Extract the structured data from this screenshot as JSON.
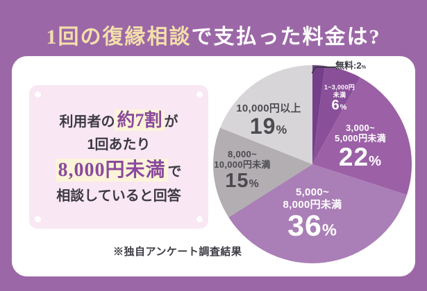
{
  "title": {
    "part1": "1回の復縁相談",
    "part2": "で支払った料金は?"
  },
  "summary_box": {
    "line1_pre": "利用者の",
    "line1_highlight": "約7割",
    "line1_post": "が",
    "line2": "1回あたり",
    "line3_highlight": "8,000円未満",
    "line3_post": "で",
    "line4": "相談していると回答"
  },
  "footnote": "※独自アンケート調査結果",
  "percent_sign": "%",
  "colors": {
    "background_purple": "#9c67a7",
    "card_white": "#ffffff",
    "summary_pink": "#f9e7f3",
    "highlight_cream": "#fcf4d9",
    "highlight_text_purple": "#8a4a9c",
    "dark_text": "#3c3a43",
    "title_cream": "#f3dfab",
    "title_white": "#ffffff",
    "label_dark_gray": "#4c4a4f",
    "label_white": "#ffffff"
  },
  "chart_data": {
    "type": "pie",
    "title": "1回の復縁相談で支払った料金は?",
    "start_angle": "12時の位置",
    "direction": "clockwise",
    "annotation": "※独自アンケート調査結果",
    "slices": [
      {
        "label": "無料",
        "pct": 2,
        "color": "#753f8a",
        "display": "無料:2",
        "label_lines": [
          "無料"
        ]
      },
      {
        "label": "1~3,000円未満",
        "pct": 6,
        "color": "#8a4f99",
        "label_lines": [
          "1~3,000円",
          "未満"
        ]
      },
      {
        "label": "3,000~5,000円未満",
        "pct": 22,
        "color": "#9b60a6",
        "label_lines": [
          "3,000~",
          "5,000円未満"
        ]
      },
      {
        "label": "5,000~8,000円未満",
        "pct": 36,
        "color": "#aa7eb6",
        "label_lines": [
          "5,000~",
          "8,000円未満"
        ]
      },
      {
        "label": "8,000~10,000円未満",
        "pct": 15,
        "color": "#b2aeb2",
        "label_lines": [
          "8,000~",
          "10,000円未満"
        ]
      },
      {
        "label": "10,000円以上",
        "pct": 19,
        "color": "#d8d5d8",
        "label_lines": [
          "10,000円以上"
        ]
      }
    ]
  }
}
